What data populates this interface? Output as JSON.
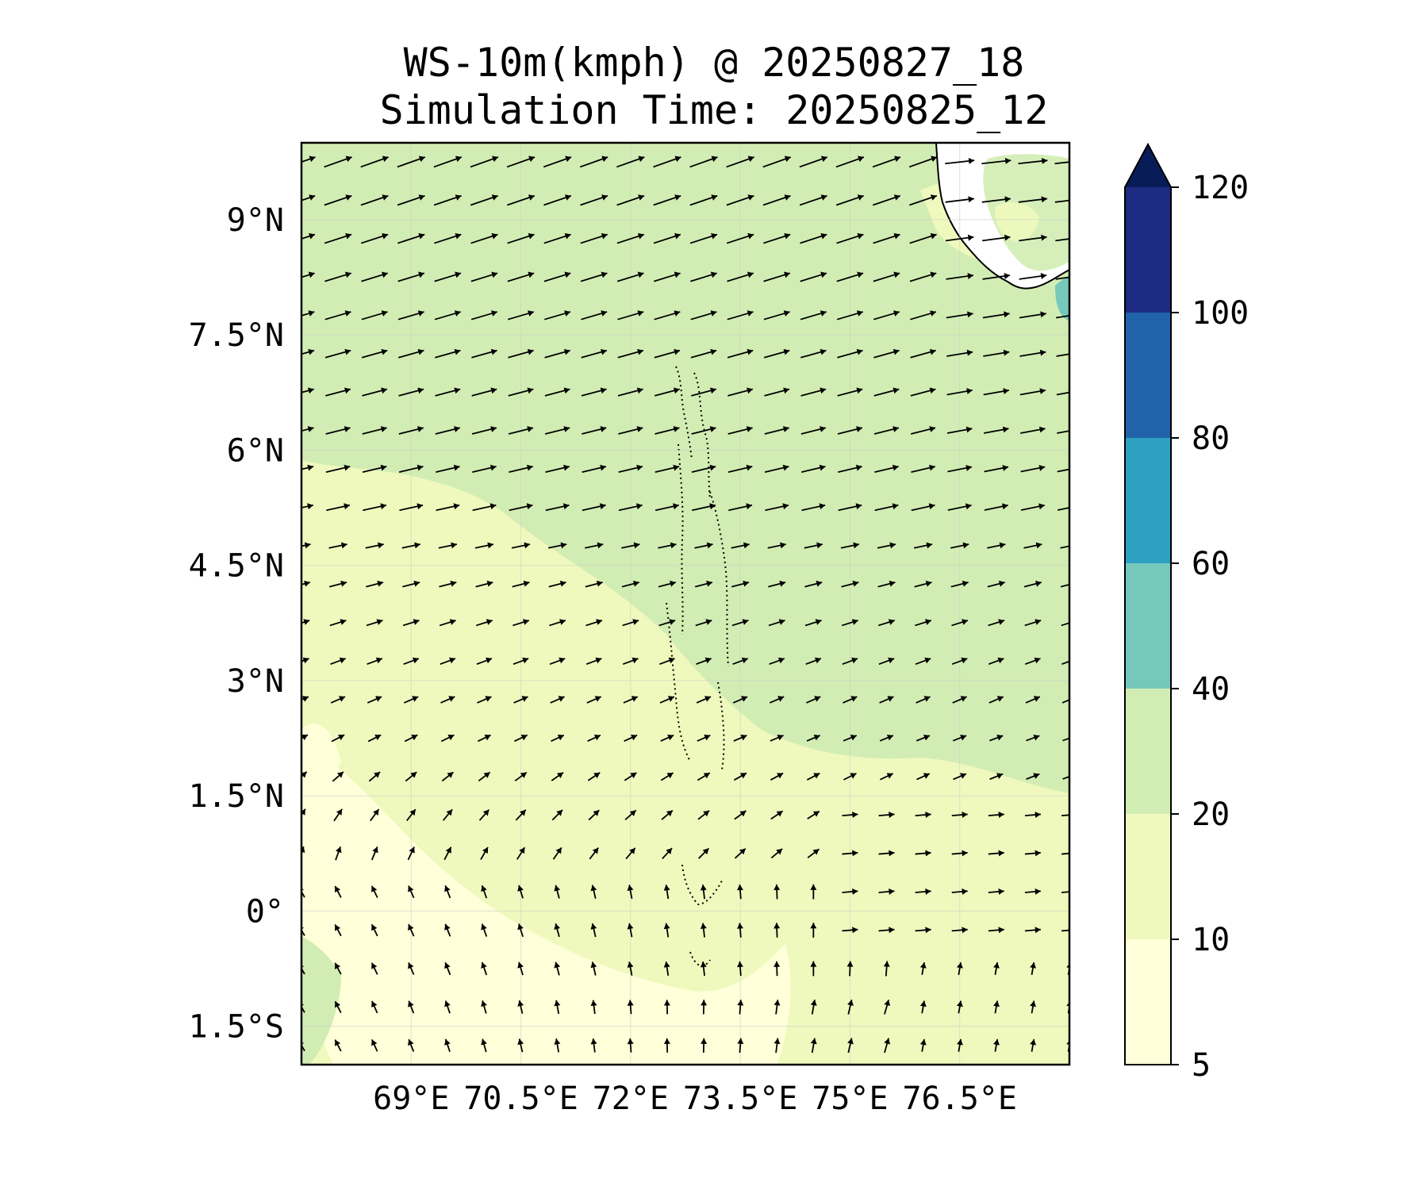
{
  "title": {
    "line1": "WS-10m(kmph) @ 20250827_18",
    "line2": "Simulation Time: 20250825_12"
  },
  "map": {
    "lon_range": [
      67.5,
      78.0
    ],
    "lat_range": [
      -2.0,
      10.0
    ],
    "lat_ticks": [
      {
        "value": 9,
        "label": "9°N"
      },
      {
        "value": 7.5,
        "label": "7.5°N"
      },
      {
        "value": 6,
        "label": "6°N"
      },
      {
        "value": 4.5,
        "label": "4.5°N"
      },
      {
        "value": 3,
        "label": "3°N"
      },
      {
        "value": 1.5,
        "label": "1.5°N"
      },
      {
        "value": 0,
        "label": "0°"
      },
      {
        "value": -1.5,
        "label": "1.5°S"
      }
    ],
    "lon_ticks": [
      {
        "value": 69,
        "label": "69°E"
      },
      {
        "value": 70.5,
        "label": "70.5°E"
      },
      {
        "value": 72,
        "label": "72°E"
      },
      {
        "value": 73.5,
        "label": "73.5°E"
      },
      {
        "value": 75,
        "label": "75°E"
      },
      {
        "value": 76.5,
        "label": "76.5°E"
      }
    ],
    "gridlines": true,
    "arrow_spacing_deg": 0.5
  },
  "colorbar": {
    "levels": [
      {
        "from": 5,
        "to": 10,
        "color": "#ffffd9"
      },
      {
        "from": 10,
        "to": 20,
        "color": "#eff9bd"
      },
      {
        "from": 20,
        "to": 40,
        "color": "#d2edb3"
      },
      {
        "from": 40,
        "to": 60,
        "color": "#76c8bb"
      },
      {
        "from": 60,
        "to": 80,
        "color": "#2ea1c3"
      },
      {
        "from": 80,
        "to": 100,
        "color": "#2163aa"
      },
      {
        "from": 100,
        "to": 120,
        "color": "#1d2c80"
      }
    ],
    "extend_color": "#081d58",
    "tick_labels": [
      "5",
      "10",
      "20",
      "40",
      "60",
      "80",
      "100",
      "120"
    ]
  },
  "colors": {
    "land": "#ffffff",
    "coast": "#000000",
    "arrow": "#000000"
  }
}
